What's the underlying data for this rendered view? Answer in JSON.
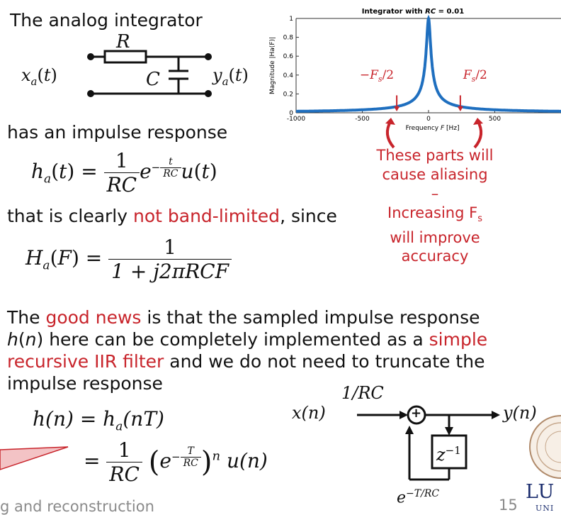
{
  "slide": {
    "title": "The analog integrator",
    "impulse_intro": "has an impulse response",
    "not_bandlimited": {
      "pre": "that is clearly ",
      "red": "not band-limited",
      "post": ", since"
    },
    "good_news": {
      "p1": "The ",
      "r1": "good news",
      "p2": " is that the sampled impulse response",
      "h": "h",
      "n": "n",
      "p3": " here can be completely implemented as a ",
      "r2a": "simple",
      "r2b": "recursive IIR filter",
      "p4": " and we do not need to truncate the",
      "p5": "impulse response"
    },
    "footer_text": "g and reconstruction",
    "page_number": "15",
    "logo_text": {
      "big": "LU",
      "small": "UNI"
    }
  },
  "circuit": {
    "R": "R",
    "C": "C",
    "in": "x",
    "in_sub": "a",
    "out": "y",
    "out_sub": "a",
    "t": "t"
  },
  "equations": {
    "ha": {
      "lhs": "h",
      "sub": "a",
      "t": "t",
      "one": "1",
      "RC": "RC",
      "e": "e",
      "exp_t": "t",
      "exp_RC": "RC",
      "u": "u"
    },
    "Ha": {
      "lhs": "H",
      "sub": "a",
      "F": "F",
      "one": "1",
      "den": "1 + j2πRCF"
    },
    "hn": {
      "lhs": "h(n) = h",
      "sub": "a",
      "arg": "(nT)",
      "eq": "=",
      "one": "1",
      "RC": "RC",
      "e": "e",
      "T": "T",
      "RC2": "RC",
      "pow": "n",
      "u": "u(n)"
    }
  },
  "chart_data": {
    "type": "line",
    "title": "Integrator with RC = 0.01",
    "title_pre": "Integrator with ",
    "title_var": "RC",
    "title_post": " = 0.01",
    "xlabel": "Frequency F [Hz]",
    "xlabel_pre": "Frequency ",
    "xlabel_var": "F",
    "xlabel_post": " [Hz]",
    "ylabel": "Magnitude |Ha(F)|",
    "xlim": [
      -1000,
      1000
    ],
    "ylim": [
      0,
      1
    ],
    "xticks": [
      -1000,
      -500,
      0,
      500
    ],
    "yticks": [
      0,
      0.2,
      0.4,
      0.6,
      0.8,
      1
    ],
    "series": [
      {
        "function": "|Ha(F)| = 1/sqrt(1+(2*pi*0.01*F)^2)",
        "color": "#1f6fbf"
      }
    ],
    "fs_labels": [
      "−F",
      "F"
    ],
    "fs_label_sub": "s",
    "fs_label_div": "/2",
    "fs_positions_hz": [
      -240,
      240
    ],
    "annotation_color": "#c8242b"
  },
  "annotations": {
    "aliasing": [
      "These parts will",
      "cause aliasing"
    ],
    "dash": "–",
    "improve": [
      "Increasing F",
      "will improve",
      "accuracy"
    ],
    "improve_sub": "s"
  },
  "block_diagram": {
    "x": "x(n)",
    "y": "y(n)",
    "gain_top": "1/RC",
    "delay": "z",
    "delay_exp": "−1",
    "gain_bottom": "e",
    "gain_bottom_exp": "−T/RC",
    "sum": "+"
  }
}
